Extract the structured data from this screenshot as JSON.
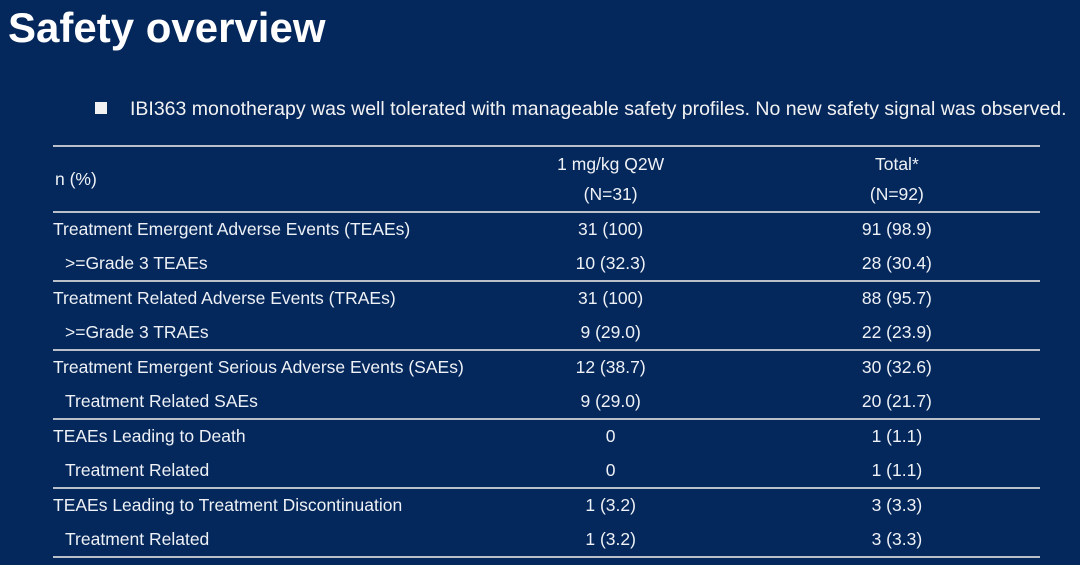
{
  "slide": {
    "title": "Safety overview",
    "bullet": "IBI363 monotherapy was well tolerated with manageable safety profiles. No new safety signal was observed."
  },
  "colors": {
    "background": "#04275c",
    "text": "#f2f2f2",
    "table_line": "#b9c0ca"
  },
  "table": {
    "header": {
      "col1": "n (%)",
      "col2_line1": "1 mg/kg Q2W",
      "col2_line2": "(N=31)",
      "col3_line1": "Total*",
      "col3_line2": "(N=92)"
    },
    "rows": [
      {
        "label": "Treatment Emergent Adverse Events (TEAEs)",
        "q2w": "31 (100)",
        "total": "91 (98.9)",
        "indent": false,
        "group_end": false
      },
      {
        "label": ">=Grade 3 TEAEs",
        "q2w": "10 (32.3)",
        "total": "28 (30.4)",
        "indent": true,
        "group_end": true
      },
      {
        "label": "Treatment Related Adverse Events (TRAEs)",
        "q2w": "31 (100)",
        "total": "88 (95.7)",
        "indent": false,
        "group_end": false
      },
      {
        "label": ">=Grade 3 TRAEs",
        "q2w": "9 (29.0)",
        "total": "22 (23.9)",
        "indent": true,
        "group_end": true
      },
      {
        "label": "Treatment Emergent Serious Adverse Events (SAEs)",
        "q2w": "12 (38.7)",
        "total": "30 (32.6)",
        "indent": false,
        "group_end": false
      },
      {
        "label": "Treatment Related SAEs",
        "q2w": "9 (29.0)",
        "total": "20 (21.7)",
        "indent": true,
        "group_end": true
      },
      {
        "label": "TEAEs Leading to Death",
        "q2w": "0",
        "total": "1 (1.1)",
        "indent": false,
        "group_end": false
      },
      {
        "label": "Treatment Related",
        "q2w": "0",
        "total": "1 (1.1)",
        "indent": true,
        "group_end": true
      },
      {
        "label": "TEAEs Leading to Treatment Discontinuation",
        "q2w": "1 (3.2)",
        "total": "3 (3.3)",
        "indent": false,
        "group_end": false
      },
      {
        "label": "Treatment Related",
        "q2w": "1 (3.2)",
        "total": "3 (3.3)",
        "indent": true,
        "group_end": true
      }
    ]
  }
}
